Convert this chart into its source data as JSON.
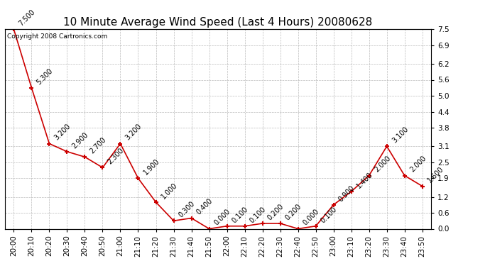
{
  "title": "10 Minute Average Wind Speed (Last 4 Hours) 20080628",
  "copyright": "Copyright 2008 Cartronics.com",
  "x_labels": [
    "20:00",
    "20:10",
    "20:20",
    "20:30",
    "20:40",
    "20:50",
    "21:00",
    "21:10",
    "21:20",
    "21:30",
    "21:40",
    "21:50",
    "22:00",
    "22:10",
    "22:20",
    "22:30",
    "22:40",
    "22:50",
    "23:00",
    "23:10",
    "23:20",
    "23:30",
    "23:40",
    "23:50"
  ],
  "y_values": [
    7.5,
    5.3,
    3.2,
    2.9,
    2.7,
    2.3,
    3.2,
    1.9,
    1.0,
    0.3,
    0.4,
    0.0,
    0.1,
    0.1,
    0.2,
    0.2,
    0.0,
    0.1,
    0.9,
    1.4,
    2.0,
    3.1,
    2.0,
    1.6
  ],
  "line_color": "#cc0000",
  "marker_color": "#cc0000",
  "background_color": "#ffffff",
  "grid_color": "#bbbbbb",
  "yticks": [
    0.0,
    0.6,
    1.2,
    1.9,
    2.5,
    3.1,
    3.8,
    4.4,
    5.0,
    5.6,
    6.2,
    6.9,
    7.5
  ],
  "ytick_labels": [
    "0.0",
    "0.6",
    "1.2",
    "1.9",
    "2.5",
    "3.1",
    "3.8",
    "4.4",
    "5.0",
    "5.6",
    "6.2",
    "6.9",
    "7.5"
  ],
  "title_fontsize": 11,
  "annotation_fontsize": 7,
  "tick_fontsize": 7.5,
  "copyright_fontsize": 6.5
}
